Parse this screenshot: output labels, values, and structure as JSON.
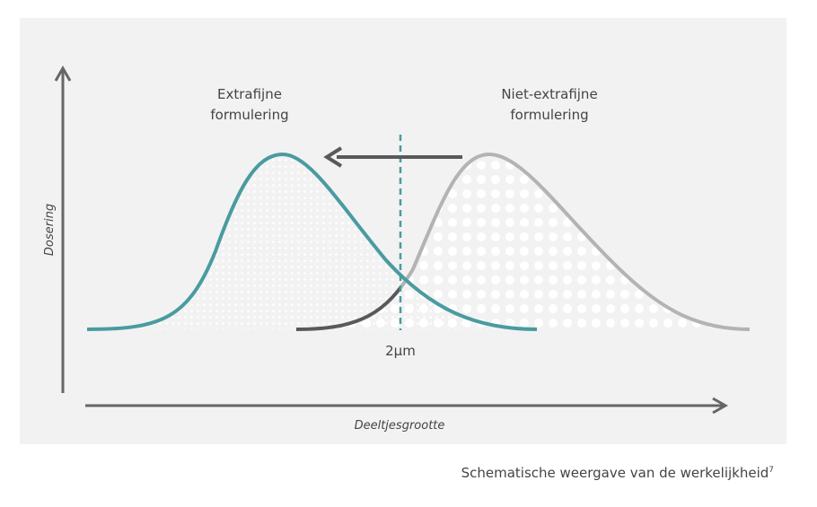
{
  "labels": {
    "left_curve": [
      "Extrafijne",
      "formulering"
    ],
    "right_curve": [
      "Niet-extrafijne",
      "formulering"
    ],
    "threshold": "2μm"
  },
  "axes": {
    "y": "Dosering",
    "x": "Deeltjesgrootte"
  },
  "caption": {
    "text": "Schematische weergave van de werkelijkheid",
    "reference": "7"
  }
}
